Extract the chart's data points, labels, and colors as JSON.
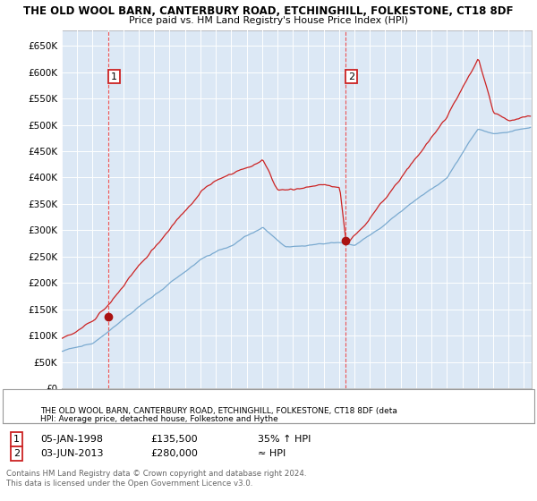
{
  "title": "THE OLD WOOL BARN, CANTERBURY ROAD, ETCHINGHILL, FOLKESTONE, CT18 8DF",
  "subtitle": "Price paid vs. HM Land Registry's House Price Index (HPI)",
  "yticks": [
    0,
    50000,
    100000,
    150000,
    200000,
    250000,
    300000,
    350000,
    400000,
    450000,
    500000,
    550000,
    600000,
    650000
  ],
  "ylim": [
    0,
    680000
  ],
  "xlim_start": 1995.0,
  "xlim_end": 2025.5,
  "bg_color": "#ffffff",
  "plot_bg_color": "#dce8f5",
  "grid_color": "#ffffff",
  "sale1_date": 1998.03,
  "sale1_price": 135500,
  "sale2_date": 2013.42,
  "sale2_price": 280000,
  "legend_red": "THE OLD WOOL BARN, CANTERBURY ROAD, ETCHINGHILL, FOLKESTONE, CT18 8DF (deta",
  "legend_blue": "HPI: Average price, detached house, Folkestone and Hythe",
  "footer": "Contains HM Land Registry data © Crown copyright and database right 2024.\nThis data is licensed under the Open Government Licence v3.0.",
  "red_color": "#cc2222",
  "blue_color": "#7aaad0",
  "dashed_color": "#ee4444",
  "marker_color": "#aa1111"
}
